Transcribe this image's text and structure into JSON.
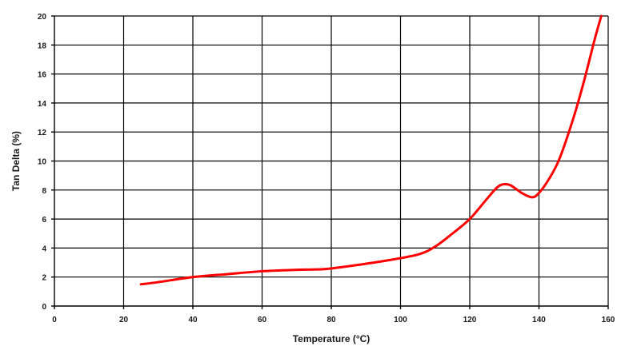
{
  "chart_data": {
    "type": "line",
    "title": "",
    "xlabel": "Temperature (°C)",
    "ylabel": "Tan Delta (%)",
    "xlim": [
      0,
      160
    ],
    "ylim": [
      0,
      20
    ],
    "x_ticks": [
      0,
      20,
      40,
      60,
      80,
      100,
      120,
      140,
      160
    ],
    "y_ticks": [
      0,
      2,
      4,
      6,
      8,
      10,
      12,
      14,
      16,
      18,
      20
    ],
    "grid": true,
    "legend": "none",
    "series": [
      {
        "color": "#ff0000",
        "x": [
          25,
          30,
          40,
          50,
          60,
          70,
          78,
          85,
          95,
          105,
          110,
          115,
          120,
          125,
          128,
          130,
          132,
          135,
          138,
          140,
          143,
          146,
          150,
          153,
          156,
          158
        ],
        "y": [
          1.5,
          1.65,
          2.0,
          2.2,
          2.4,
          2.5,
          2.55,
          2.75,
          3.1,
          3.55,
          4.1,
          5.0,
          6.0,
          7.4,
          8.2,
          8.4,
          8.3,
          7.8,
          7.5,
          7.8,
          8.8,
          10.2,
          13.0,
          15.5,
          18.3,
          20.0
        ]
      }
    ]
  }
}
